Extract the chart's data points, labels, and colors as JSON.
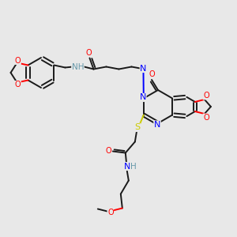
{
  "bg": "#e8e8e8",
  "C": "#1a1a1a",
  "N": "#0000ff",
  "O": "#ff0000",
  "S": "#cccc00",
  "H_color": "#6699aa",
  "lw": 1.4,
  "fs": 7.0,
  "dbl_off": 2.2
}
